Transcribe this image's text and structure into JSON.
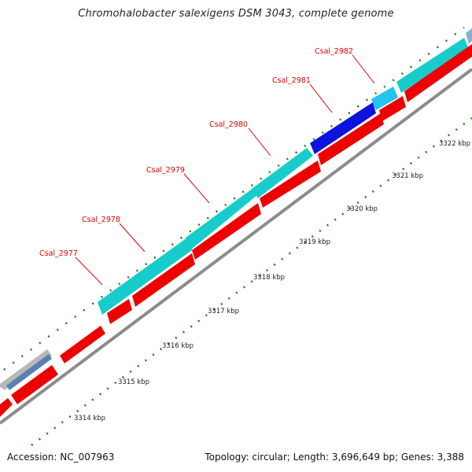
{
  "title": "Chromohalobacter salexigens DSM 3043, complete genome",
  "footer": {
    "accession": "Accession: NC_007963",
    "summary": "Topology: circular; Length: 3,696,649 bp; Genes: 3,388"
  },
  "colors": {
    "cds_forward": "#18cccc",
    "cds_reverse": "#ee0000",
    "gene_highlight": "#0a14dd",
    "gene_light_blue": "#22c4f0",
    "backbone": "#8c8c8c",
    "tick": "#1e7a1e",
    "label": "#e00000"
  },
  "scale": {
    "unit": "kbp",
    "labels": [
      "3314 kbp",
      "3315 kbp",
      "3316 kbp",
      "3317 kbp",
      "3318 kbp",
      "3319 kbp",
      "3320 kbp",
      "3321 kbp",
      "3322 kbp"
    ]
  },
  "gene_labels": [
    "Csal_2977",
    "Csal_2978",
    "Csal_2979",
    "Csal_2980",
    "Csal_2981",
    "Csal_2982"
  ]
}
